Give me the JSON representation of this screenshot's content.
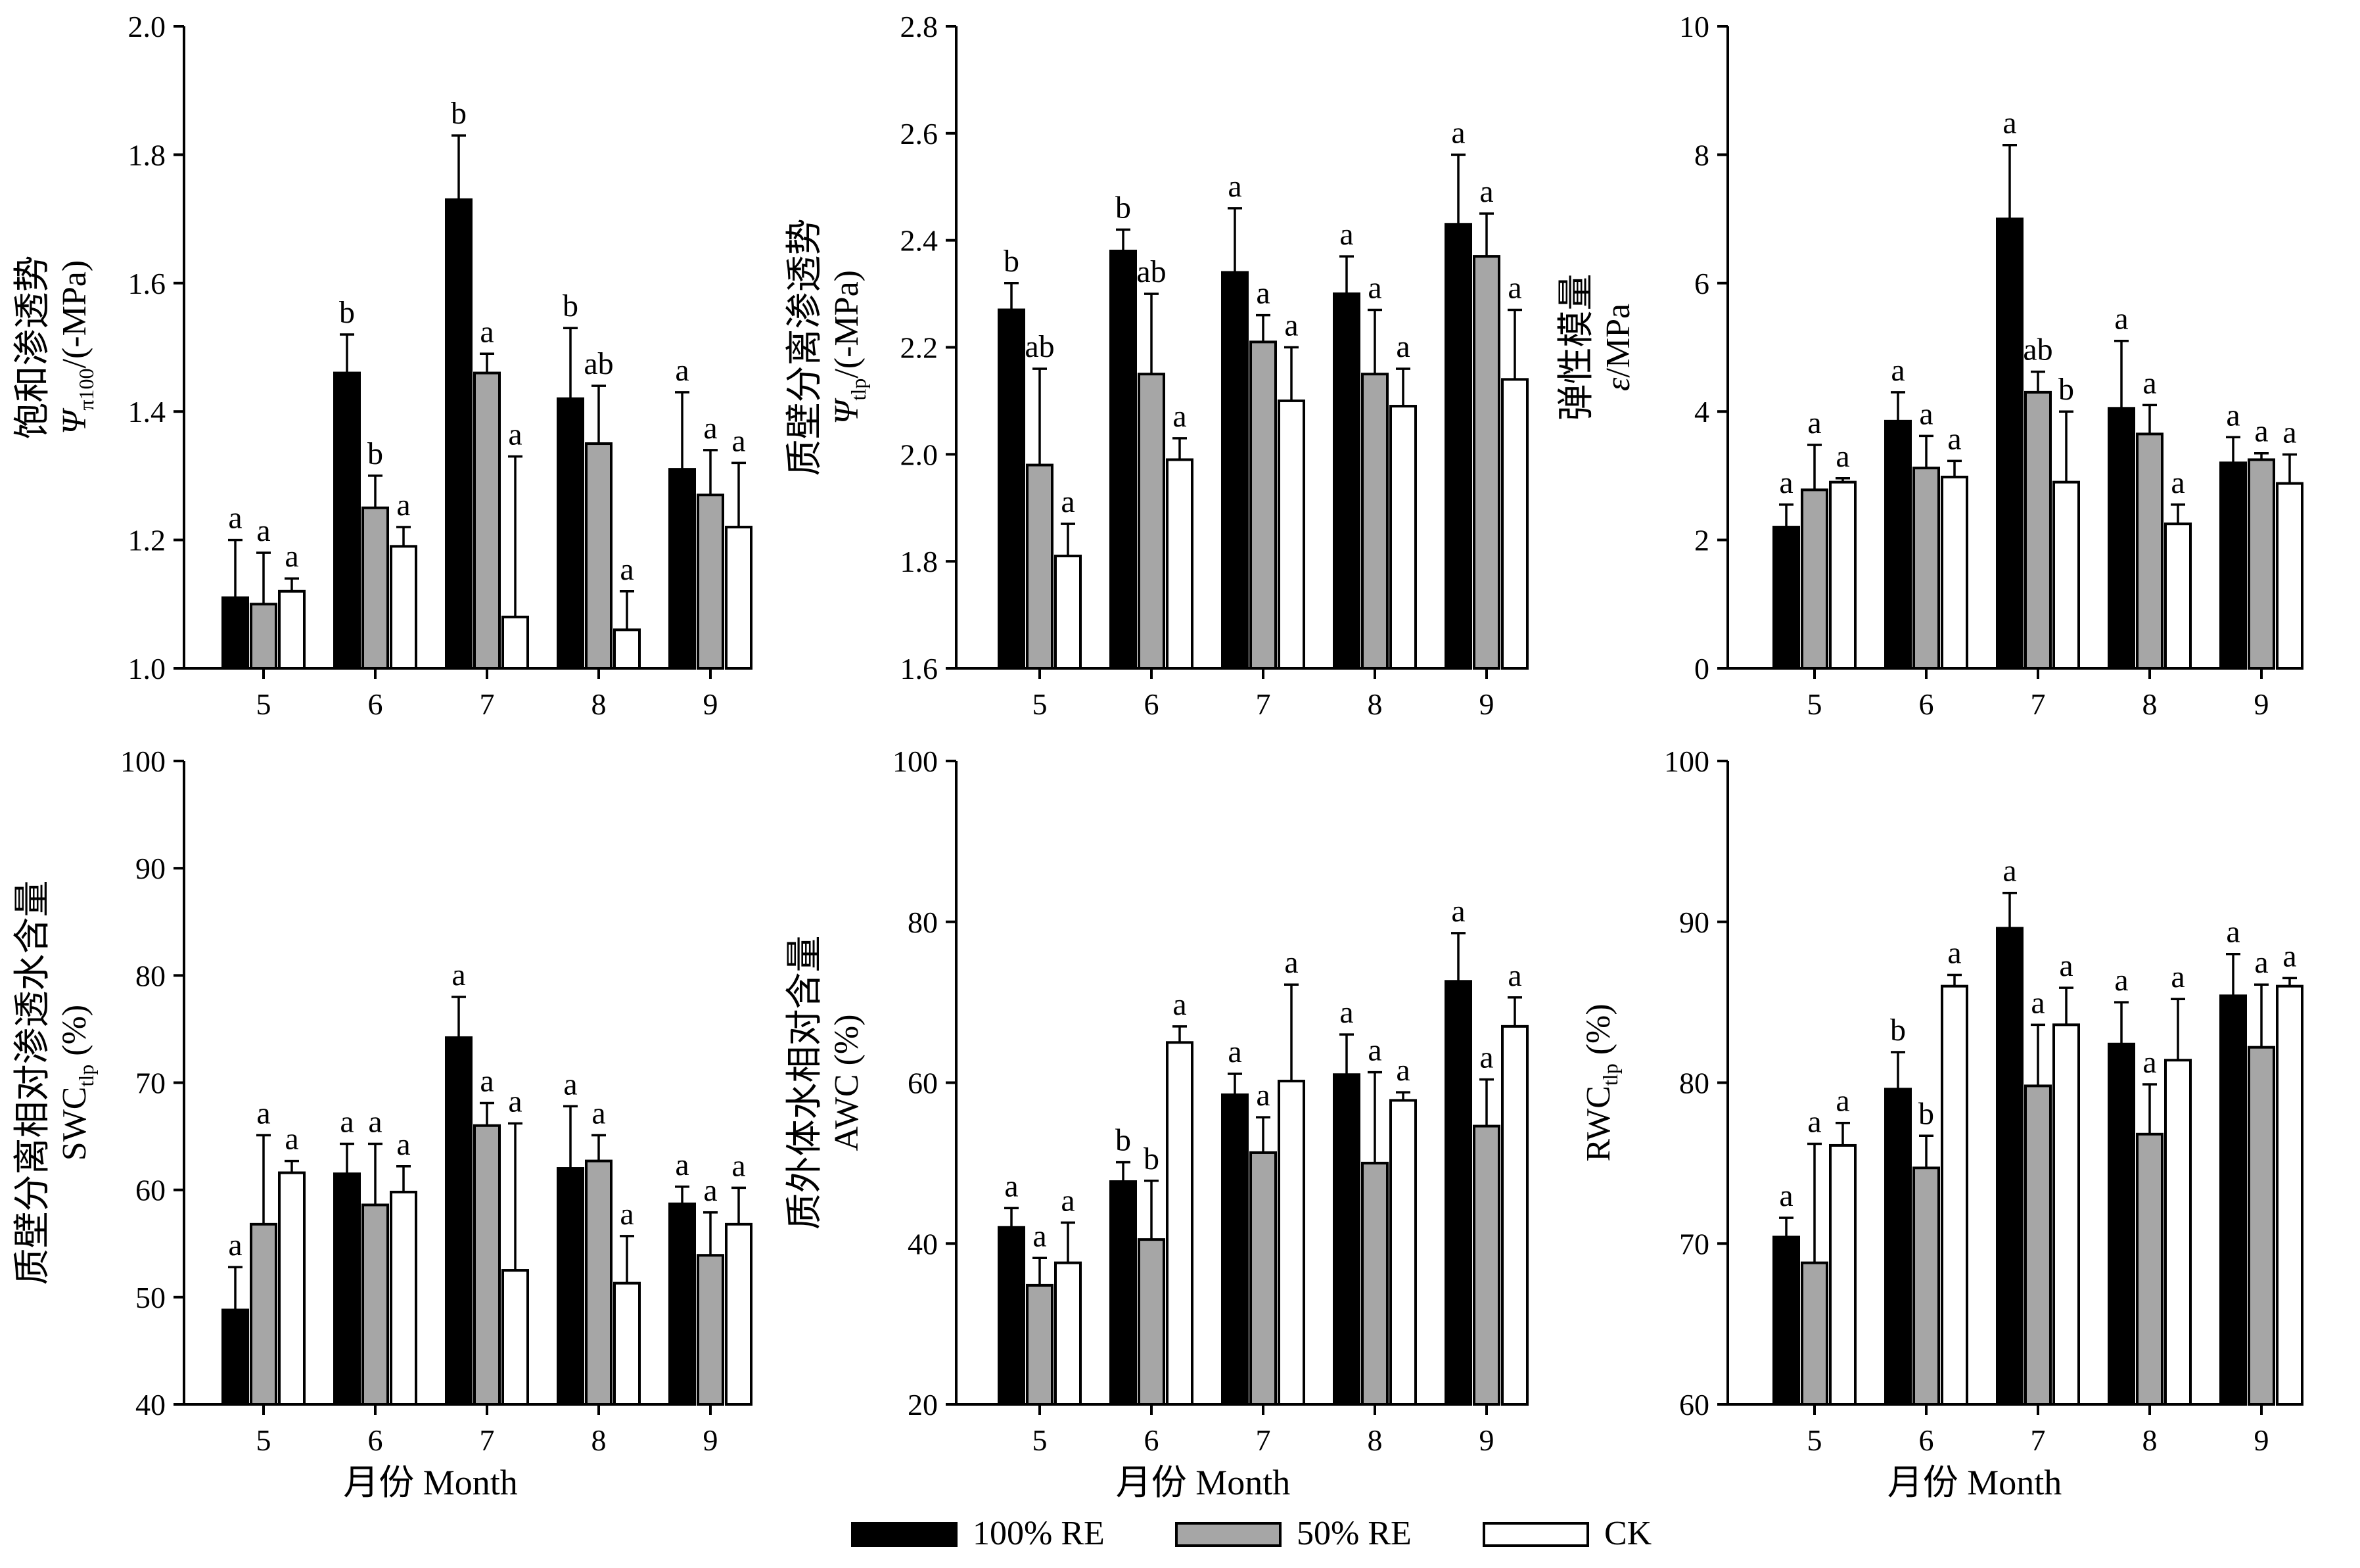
{
  "colors": {
    "s100": "#000000",
    "s50": "#a6a6a6",
    "ck": "#ffffff"
  },
  "legend": [
    {
      "name": "100% RE",
      "color": "#000000"
    },
    {
      "name": "50% RE",
      "color": "#a6a6a6"
    },
    {
      "name": "CK",
      "color": "#ffffff"
    }
  ],
  "chart_data": [
    {
      "type": "bar",
      "title": "",
      "ylabel_cn": "饱和渗透势",
      "ylabel_sym": "Ψ",
      "ylabel_sub": "π100",
      "ylabel_unit": "/(-MPa)",
      "xlabel": "",
      "ylim": [
        1.0,
        2.0
      ],
      "yticks": [
        1.0,
        1.2,
        1.4,
        1.6,
        1.8,
        2.0
      ],
      "ytick_labels": [
        "1.0",
        "1.2",
        "1.4",
        "1.6",
        "1.8",
        "2.0"
      ],
      "categories": [
        "5",
        "6",
        "7",
        "8",
        "9"
      ],
      "series": [
        {
          "name": "100% RE",
          "values": [
            1.11,
            1.46,
            1.73,
            1.42,
            1.31
          ],
          "errors": [
            0.09,
            0.06,
            0.1,
            0.11,
            0.12
          ],
          "letters": [
            "a",
            "b",
            "b",
            "b",
            "a"
          ]
        },
        {
          "name": "50% RE",
          "values": [
            1.1,
            1.25,
            1.46,
            1.35,
            1.27
          ],
          "errors": [
            0.08,
            0.05,
            0.03,
            0.09,
            0.07
          ],
          "letters": [
            "a",
            "b",
            "a",
            "ab",
            "a"
          ]
        },
        {
          "name": "CK",
          "values": [
            1.12,
            1.19,
            1.08,
            1.06,
            1.22
          ],
          "errors": [
            0.02,
            0.03,
            0.25,
            0.06,
            0.1
          ],
          "letters": [
            "a",
            "a",
            "a",
            "a",
            "a"
          ]
        }
      ]
    },
    {
      "type": "bar",
      "title": "",
      "ylabel_cn": "质壁分离渗透势",
      "ylabel_sym": "Ψ",
      "ylabel_sub": "tlp",
      "ylabel_unit": "/(-MPa)",
      "xlabel": "",
      "ylim": [
        1.6,
        2.8
      ],
      "yticks": [
        1.6,
        1.8,
        2.0,
        2.2,
        2.4,
        2.6,
        2.8
      ],
      "ytick_labels": [
        "1.6",
        "1.8",
        "2.0",
        "2.2",
        "2.4",
        "2.6",
        "2.8"
      ],
      "categories": [
        "5",
        "6",
        "7",
        "8",
        "9"
      ],
      "series": [
        {
          "name": "100% RE",
          "values": [
            2.27,
            2.38,
            2.34,
            2.3,
            2.43
          ],
          "errors": [
            0.05,
            0.04,
            0.12,
            0.07,
            0.13
          ],
          "letters": [
            "b",
            "b",
            "a",
            "a",
            "a"
          ]
        },
        {
          "name": "50% RE",
          "values": [
            1.98,
            2.15,
            2.21,
            2.15,
            2.37
          ],
          "errors": [
            0.18,
            0.15,
            0.05,
            0.12,
            0.08
          ],
          "letters": [
            "ab",
            "ab",
            "a",
            "a",
            "a"
          ]
        },
        {
          "name": "CK",
          "values": [
            1.81,
            1.99,
            2.1,
            2.09,
            2.14
          ],
          "errors": [
            0.06,
            0.04,
            0.1,
            0.07,
            0.13
          ],
          "letters": [
            "a",
            "a",
            "a",
            "a",
            "a"
          ]
        }
      ]
    },
    {
      "type": "bar",
      "title": "",
      "ylabel_cn": "弹性模量",
      "ylabel_sym": "ε",
      "ylabel_sub": "",
      "ylabel_unit": "/MPa",
      "xlabel": "",
      "ylim": [
        0,
        10
      ],
      "yticks": [
        0,
        2,
        4,
        6,
        8,
        10
      ],
      "ytick_labels": [
        "0",
        "2",
        "4",
        "6",
        "8",
        "10"
      ],
      "categories": [
        "5",
        "6",
        "7",
        "8",
        "9"
      ],
      "series": [
        {
          "name": "100% RE",
          "values": [
            2.2,
            3.85,
            7.0,
            4.05,
            3.2
          ],
          "errors": [
            0.35,
            0.45,
            1.15,
            1.05,
            0.4
          ],
          "letters": [
            "a",
            "a",
            "a",
            "a",
            "a"
          ]
        },
        {
          "name": "50% RE",
          "values": [
            2.78,
            3.12,
            4.3,
            3.65,
            3.25
          ],
          "errors": [
            0.7,
            0.5,
            0.32,
            0.45,
            0.1
          ],
          "letters": [
            "a",
            "a",
            "ab",
            "a",
            "a"
          ]
        },
        {
          "name": "CK",
          "values": [
            2.9,
            2.98,
            2.9,
            2.25,
            2.88
          ],
          "errors": [
            0.06,
            0.25,
            1.1,
            0.3,
            0.45
          ],
          "letters": [
            "a",
            "a",
            "b",
            "a",
            "a"
          ]
        }
      ]
    },
    {
      "type": "bar",
      "title": "",
      "ylabel_cn": "质壁分离相对渗透水含量",
      "ylabel_sym": "SWC",
      "ylabel_sub": "tlp",
      "ylabel_unit": " (%)",
      "xlabel": "月份 Month",
      "ylim": [
        40,
        100
      ],
      "yticks": [
        40,
        50,
        60,
        70,
        80,
        90,
        100
      ],
      "ytick_labels": [
        "40",
        "50",
        "60",
        "70",
        "80",
        "90",
        "100"
      ],
      "categories": [
        "5",
        "6",
        "7",
        "8",
        "9"
      ],
      "series": [
        {
          "name": "100% RE",
          "values": [
            48.8,
            61.5,
            74.2,
            62.0,
            58.7
          ],
          "errors": [
            4.0,
            2.8,
            3.8,
            5.8,
            1.6
          ],
          "letters": [
            "a",
            "a",
            "a",
            "a",
            "a"
          ]
        },
        {
          "name": "50% RE",
          "values": [
            56.8,
            58.6,
            66.0,
            62.7,
            53.9
          ],
          "errors": [
            8.3,
            5.7,
            2.1,
            2.4,
            4.0
          ],
          "letters": [
            "a",
            "a",
            "a",
            "a",
            "a"
          ]
        },
        {
          "name": "CK",
          "values": [
            61.6,
            59.8,
            52.5,
            51.3,
            56.8
          ],
          "errors": [
            1.1,
            2.4,
            13.7,
            4.4,
            3.4
          ],
          "letters": [
            "a",
            "a",
            "a",
            "a",
            "a"
          ]
        }
      ]
    },
    {
      "type": "bar",
      "title": "",
      "ylabel_cn": "质外体水相对含量",
      "ylabel_sym": "AWC",
      "ylabel_sub": "",
      "ylabel_unit": " (%)",
      "xlabel": "月份 Month",
      "ylim": [
        20,
        100
      ],
      "yticks": [
        20,
        40,
        60,
        80,
        100
      ],
      "ytick_labels": [
        "20",
        "40",
        "60",
        "80",
        "100"
      ],
      "categories": [
        "5",
        "6",
        "7",
        "8",
        "9"
      ],
      "series": [
        {
          "name": "100% RE",
          "values": [
            42.0,
            47.7,
            58.5,
            61.0,
            72.6
          ],
          "errors": [
            2.4,
            2.4,
            2.6,
            5.0,
            6.0
          ],
          "letters": [
            "a",
            "b",
            "a",
            "a",
            "a"
          ]
        },
        {
          "name": "50% RE",
          "values": [
            34.8,
            40.5,
            51.3,
            50.0,
            54.6
          ],
          "errors": [
            3.4,
            7.3,
            4.4,
            11.3,
            5.8
          ],
          "letters": [
            "a",
            "b",
            "a",
            "a",
            "a"
          ]
        },
        {
          "name": "CK",
          "values": [
            37.6,
            65.0,
            60.2,
            57.8,
            67.0
          ],
          "errors": [
            5.0,
            2.0,
            12.0,
            1.0,
            3.6
          ],
          "letters": [
            "a",
            "a",
            "a",
            "a",
            "a"
          ]
        }
      ]
    },
    {
      "type": "bar",
      "title": "",
      "ylabel_cn": "",
      "ylabel_sym": "RWC",
      "ylabel_sub": "tlp",
      "ylabel_unit": " (%)",
      "xlabel": "月份 Month",
      "ylim": [
        60,
        100
      ],
      "yticks": [
        60,
        70,
        80,
        90,
        100
      ],
      "ytick_labels": [
        "60",
        "70",
        "80",
        "90",
        "100"
      ],
      "categories": [
        "5",
        "6",
        "7",
        "8",
        "9"
      ],
      "series": [
        {
          "name": "100% RE",
          "values": [
            70.4,
            79.6,
            89.6,
            82.4,
            85.4
          ],
          "errors": [
            1.2,
            2.3,
            2.2,
            2.6,
            2.6
          ],
          "letters": [
            "a",
            "b",
            "a",
            "a",
            "a"
          ]
        },
        {
          "name": "50% RE",
          "values": [
            68.8,
            74.7,
            79.8,
            76.8,
            82.2
          ],
          "errors": [
            7.4,
            2.0,
            3.8,
            3.1,
            3.9
          ],
          "letters": [
            "a",
            "b",
            "a",
            "a",
            "a"
          ]
        },
        {
          "name": "CK",
          "values": [
            76.1,
            86.0,
            83.6,
            81.4,
            86.0
          ],
          "errors": [
            1.4,
            0.7,
            2.3,
            3.8,
            0.5
          ],
          "letters": [
            "a",
            "a",
            "a",
            "a",
            "a"
          ]
        }
      ]
    }
  ]
}
